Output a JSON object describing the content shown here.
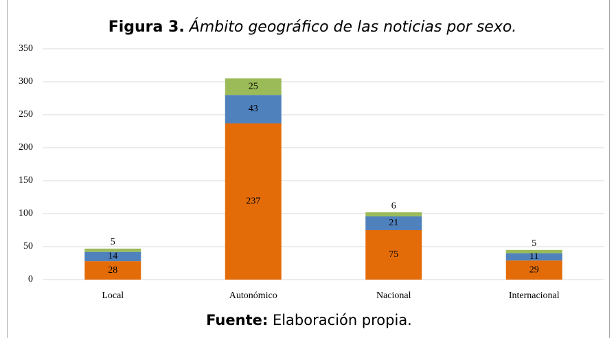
{
  "chart_data": {
    "type": "stacked_bar",
    "title_label": "Figura 3.",
    "title": "Ámbito geográfico de las noticias por sexo.",
    "source_label": "Fuente:",
    "source": "Elaboración propia.",
    "categories": [
      "Local",
      "Autonómico",
      "Nacional",
      "Internacional"
    ],
    "series": [
      {
        "color": "#e36c09",
        "values": [
          28,
          237,
          75,
          29
        ]
      },
      {
        "color": "#4f81bd",
        "values": [
          14,
          43,
          21,
          11
        ]
      },
      {
        "color": "#9bbb59",
        "values": [
          5,
          25,
          6,
          5
        ]
      }
    ],
    "ylim": [
      0,
      350
    ],
    "yticks": [
      0,
      50,
      100,
      150,
      200,
      250,
      300,
      350
    ],
    "grid": true
  }
}
